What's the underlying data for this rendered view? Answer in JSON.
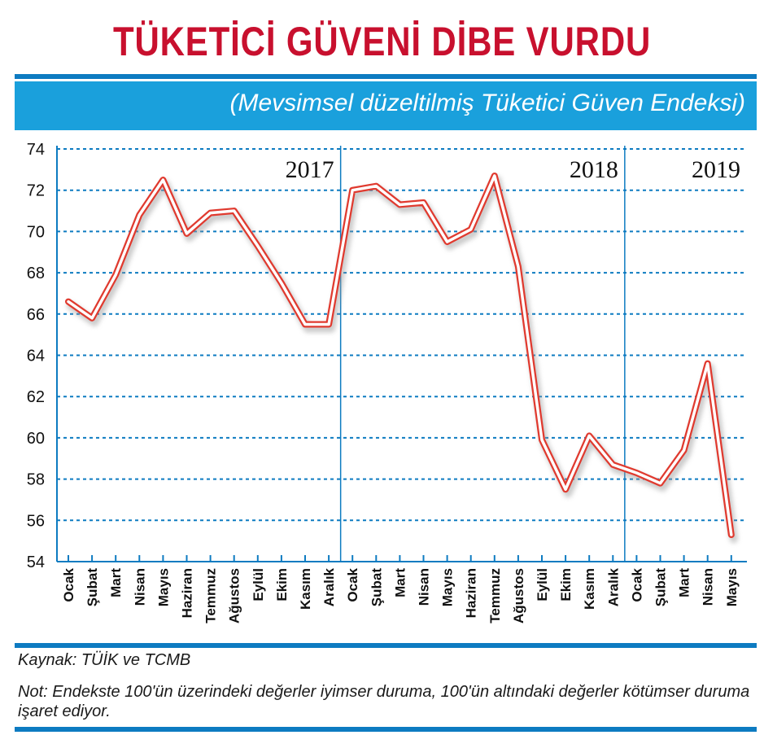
{
  "title": "TÜKETİCİ GÜVENİ DİBE VURDU",
  "subtitle": "(Mevsimsel düzeltilmiş Tüketici Güven Endeksi)",
  "source": "Kaynak: TÜİK ve TCMB",
  "note": "Not: Endekste 100'ün üzerindeki değerler iyimser duruma, 100'ün altındaki değerler kötümser duruma işaret ediyor.",
  "colors": {
    "title": "#c8102e",
    "band": "#1aa0dc",
    "rule": "#0d7bc1",
    "line": "#e03a2f"
  },
  "chart_data": {
    "type": "line",
    "ylim": [
      54,
      74
    ],
    "yticks": [
      74,
      72,
      70,
      68,
      66,
      64,
      62,
      60,
      58,
      56,
      54
    ],
    "grid": true,
    "categories": [
      "Ocak",
      "Şubat",
      "Mart",
      "Nisan",
      "Mayıs",
      "Haziran",
      "Temmuz",
      "Ağustos",
      "Eylül",
      "Ekim",
      "Kasım",
      "Aralık",
      "Ocak",
      "Şubat",
      "Mart",
      "Nisan",
      "Mayıs",
      "Haziran",
      "Temmuz",
      "Ağustos",
      "Eylül",
      "Ekim",
      "Kasım",
      "Aralık",
      "Ocak",
      "Şubat",
      "Mart",
      "Nisan",
      "Mayıs"
    ],
    "years": [
      {
        "label": "2017",
        "start_index": 0
      },
      {
        "label": "2018",
        "start_index": 12
      },
      {
        "label": "2019",
        "start_index": 24
      }
    ],
    "values": [
      66.6,
      65.8,
      67.9,
      70.8,
      72.5,
      69.9,
      70.9,
      71.0,
      69.3,
      67.5,
      65.5,
      65.5,
      72.0,
      72.2,
      71.3,
      71.4,
      69.5,
      70.1,
      72.7,
      68.3,
      59.9,
      57.5,
      60.1,
      58.7,
      58.3,
      57.8,
      59.4,
      63.6,
      55.3
    ]
  }
}
